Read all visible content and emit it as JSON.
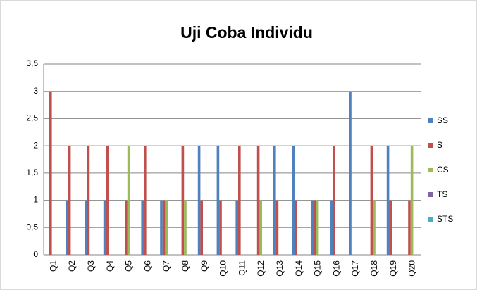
{
  "chart_data": {
    "type": "bar",
    "title": "Uji Coba Individu",
    "categories": [
      "Q1",
      "Q2",
      "Q3",
      "Q4",
      "Q5",
      "Q6",
      "Q7",
      "Q8",
      "Q9",
      "Q10",
      "Q11",
      "Q12",
      "Q13",
      "Q14",
      "Q15",
      "Q16",
      "Q17",
      "Q18",
      "Q19",
      "Q20"
    ],
    "series": [
      {
        "name": "SS",
        "color": "#4f81bd",
        "values": [
          0,
          1,
          1,
          1,
          0,
          1,
          1,
          0,
          2,
          2,
          1,
          0,
          2,
          2,
          1,
          1,
          3,
          0,
          2,
          0
        ]
      },
      {
        "name": "S",
        "color": "#c0504d",
        "values": [
          3,
          2,
          2,
          2,
          1,
          2,
          1,
          2,
          1,
          1,
          2,
          2,
          1,
          1,
          1,
          2,
          0,
          2,
          1,
          1
        ]
      },
      {
        "name": "CS",
        "color": "#9bbb59",
        "values": [
          0,
          0,
          0,
          0,
          2,
          0,
          1,
          1,
          0,
          0,
          0,
          1,
          0,
          0,
          1,
          0,
          0,
          1,
          0,
          2
        ]
      },
      {
        "name": "TS",
        "color": "#8064a2",
        "values": [
          0,
          0,
          0,
          0,
          0,
          0,
          0,
          0,
          0,
          0,
          0,
          0,
          0,
          0,
          0,
          0,
          0,
          0,
          0,
          0
        ]
      },
      {
        "name": "STS",
        "color": "#4bacc6",
        "values": [
          0,
          0,
          0,
          0,
          0,
          0,
          0,
          0,
          0,
          0,
          0,
          0,
          0,
          0,
          0,
          0,
          0,
          0,
          0,
          0
        ]
      }
    ],
    "ylim": [
      0,
      3.5
    ],
    "yticks": [
      0,
      {
        "value": 0.5,
        "label": "0,5"
      },
      1,
      {
        "value": 1.5,
        "label": "1,5"
      },
      2,
      {
        "value": 2.5,
        "label": "2,5"
      },
      3,
      {
        "value": 3.5,
        "label": "3,5"
      }
    ],
    "grid": true,
    "legend": "right"
  }
}
